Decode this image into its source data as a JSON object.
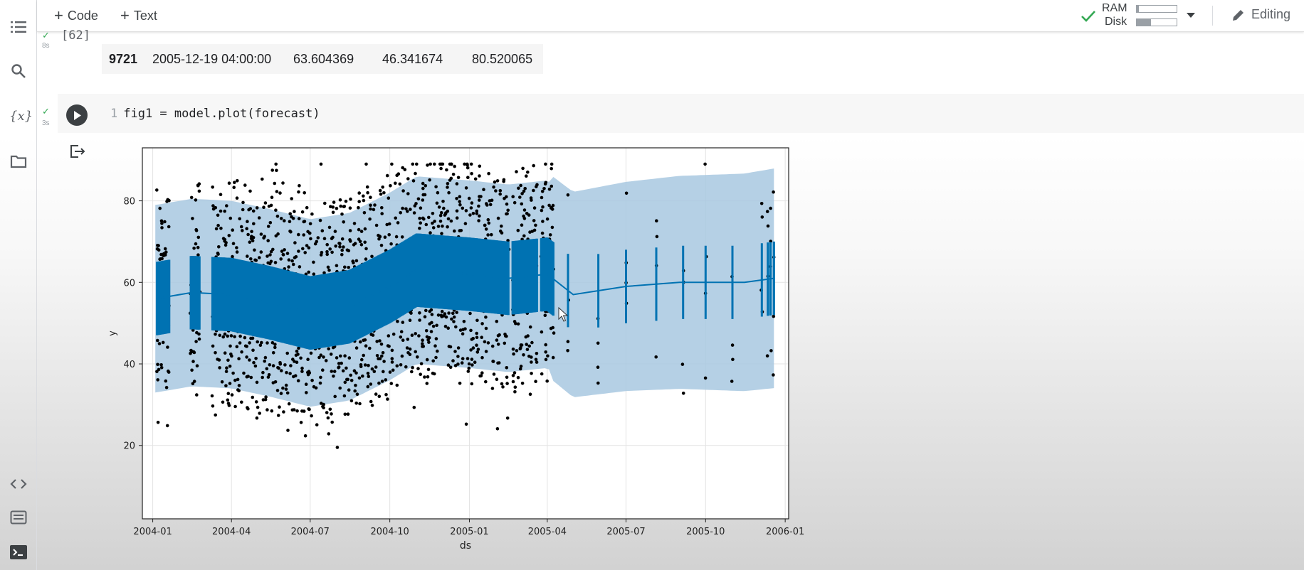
{
  "toolbar": {
    "code_label": "Code",
    "text_label": "Text",
    "ram_label": "RAM",
    "disk_label": "Disk",
    "ram_usage": 0.05,
    "disk_usage": 0.35,
    "editing_label": "Editing"
  },
  "cell1": {
    "exec_count": "[62]",
    "time": "8s",
    "row": {
      "index": "9721",
      "ds": "2005-12-19 04:00:00",
      "yhat": "63.604369",
      "yhat_lower": "46.341674",
      "yhat_upper": "80.520065"
    }
  },
  "cell2": {
    "time": "3s",
    "line_number": "1",
    "code": "fig1 = model.plot(forecast)"
  },
  "colors": {
    "forecast": "#0072B2",
    "interval": "#A8C8E1",
    "points": "#000000",
    "check": "#34a853"
  },
  "chart_data": {
    "type": "line",
    "xlabel": "ds",
    "ylabel": "y",
    "x_ticks": [
      "2004-01",
      "2004-04",
      "2004-07",
      "2004-10",
      "2005-01",
      "2005-04",
      "2005-07",
      "2005-10",
      "2006-01"
    ],
    "y_ticks": [
      20,
      40,
      60,
      80
    ],
    "xlim": [
      "2003-12-20",
      "2006-01-05"
    ],
    "ylim": [
      2,
      93
    ],
    "grid": true,
    "series": [
      {
        "role": "trend",
        "x": [
          "2004-01-05",
          "2004-02-15",
          "2004-04-01",
          "2004-05-15",
          "2004-07-01",
          "2004-08-15",
          "2004-10-01",
          "2004-11-01",
          "2005-01-01",
          "2005-02-15",
          "2005-04-01",
          "2005-05-01",
          "2005-07-01",
          "2005-09-01",
          "2005-11-15",
          "2005-12-19"
        ],
        "values": [
          56,
          57.5,
          57,
          55,
          52.5,
          54,
          59,
          63,
          62,
          61,
          62,
          57,
          59,
          60,
          60,
          61
        ]
      }
    ]
  }
}
